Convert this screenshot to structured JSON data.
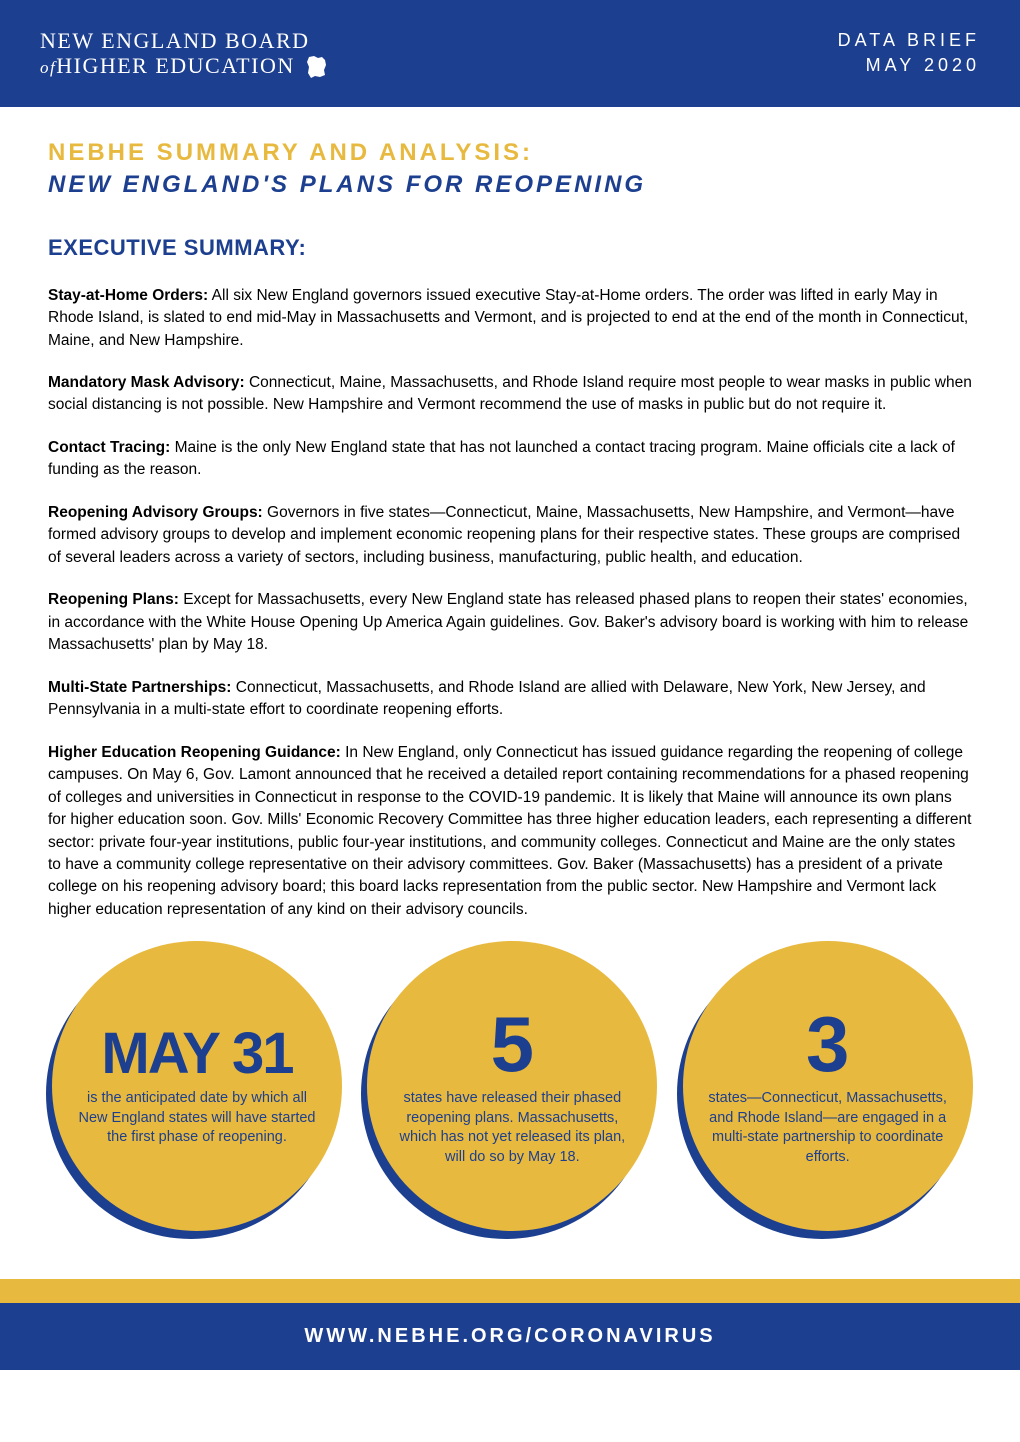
{
  "header": {
    "org_line1": "NEW ENGLAND BOARD",
    "org_line2_of": "of",
    "org_line2_rest": "HIGHER EDUCATION",
    "doc_type": "DATA BRIEF",
    "date": "MAY 2020"
  },
  "titles": {
    "line1": "NEBHE SUMMARY AND ANALYSIS:",
    "line2": "NEW ENGLAND'S PLANS FOR REOPENING",
    "exec": "EXECUTIVE SUMMARY:"
  },
  "paragraphs": [
    {
      "bold": "Stay-at-Home Orders:",
      "text": " All six New England governors issued executive Stay-at-Home orders. The order was lifted in early May in Rhode Island, is slated to end mid-May in Massachusetts and Vermont, and is projected to end at the end of the month in Connecticut, Maine, and New Hampshire."
    },
    {
      "bold": "Mandatory Mask Advisory:",
      "text": " Connecticut, Maine, Massachusetts, and Rhode Island require most people to wear masks in public when social distancing is not possible. New Hampshire and Vermont recommend the use of masks in public but do not require it."
    },
    {
      "bold": "Contact Tracing:",
      "text": " Maine is the only New England state that has not launched a contact tracing program. Maine officials cite a lack of funding as the reason."
    },
    {
      "bold": "Reopening Advisory Groups:",
      "text": " Governors in five states—Connecticut, Maine, Massachusetts, New Hampshire, and Vermont—have formed advisory groups to develop and implement economic reopening plans for their respective states. These groups are comprised of several leaders across a variety of sectors, including business, manufacturing, public health, and education."
    },
    {
      "bold": "Reopening Plans:",
      "text": " Except for Massachusetts, every New England state has released phased plans to reopen their states' economies, in accordance with the White House Opening Up America Again guidelines. Gov. Baker's advisory board is working with him to release Massachusetts' plan by May 18."
    },
    {
      "bold": "Multi-State Partnerships:",
      "text": " Connecticut, Massachusetts, and Rhode Island are allied with Delaware, New York, New Jersey, and Pennsylvania in a multi-state effort to coordinate reopening efforts."
    },
    {
      "bold": "Higher Education Reopening Guidance:",
      "text": " In New England, only Connecticut has issued guidance regarding the reopening of college campuses. On May 6, Gov. Lamont announced that he received a detailed report containing recommendations for a phased reopening of colleges and universities in Connecticut in response to the COVID-19 pandemic. It is likely that Maine will announce its own plans for higher education soon. Gov. Mills' Economic Recovery Committee has three higher education leaders, each representing a different sector: private four-year institutions, public four-year institutions, and community colleges. Connecticut and Maine are the only states to have a community college representative on their advisory committees. Gov. Baker (Massachusetts) has a president of a private college on his reopening advisory board; this board lacks representation from the public sector. New Hampshire and Vermont lack higher education representation of any kind on their advisory councils."
    }
  ],
  "circles": [
    {
      "big": "MAY 31",
      "big_class": "circle-big",
      "text": "is the anticipated date by which all New England states will have started the first phase of reopening."
    },
    {
      "big": "5",
      "big_class": "circle-big-num",
      "text": "states have released their phased reopening plans. Massachusetts, which has not yet released its plan, will do so by May 18."
    },
    {
      "big": "3",
      "big_class": "circle-big-num",
      "text": "states—Connecticut, Massachusetts, and Rhode Island—are engaged in a multi-state partnership to coordinate efforts."
    }
  ],
  "footer": {
    "url": "WWW.NEBHE.ORG/CORONAVIRUS"
  },
  "colors": {
    "navy": "#1d3f8f",
    "gold": "#e8b93f",
    "white": "#ffffff",
    "black": "#000000"
  }
}
